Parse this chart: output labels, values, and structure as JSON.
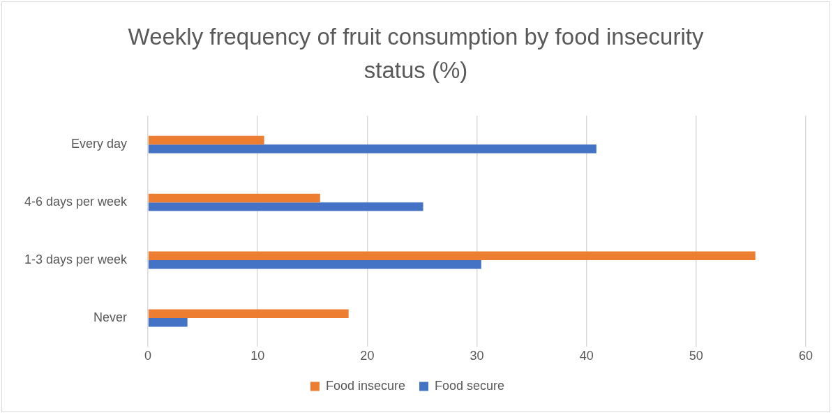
{
  "chart_data": {
    "type": "bar",
    "orientation": "horizontal",
    "title": "Weekly frequency of fruit consumption by food insecurity status (%)",
    "categories": [
      "Every day",
      "4-6 days per week",
      "1-3 days per week",
      "Never"
    ],
    "series": [
      {
        "name": "Food insecure",
        "color": "#ed7d31",
        "values": [
          10.6,
          15.7,
          55.4,
          18.3
        ]
      },
      {
        "name": "Food secure",
        "color": "#4472c4",
        "values": [
          40.9,
          25.1,
          30.4,
          3.6
        ]
      }
    ],
    "xlim": [
      0,
      60
    ],
    "xticks": [
      0,
      10,
      20,
      30,
      40,
      50,
      60
    ],
    "grid": "x",
    "legend": "bottom"
  }
}
